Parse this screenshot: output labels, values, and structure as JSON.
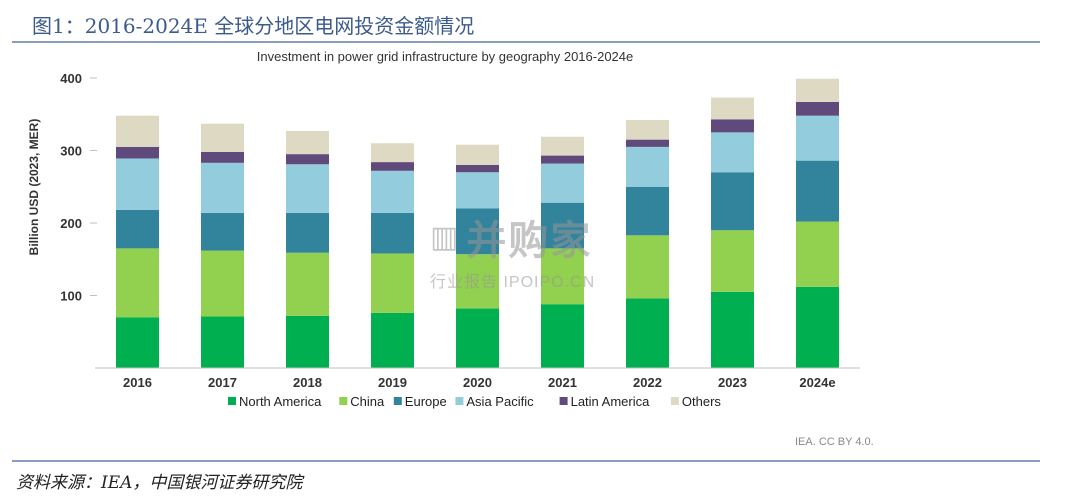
{
  "figure": {
    "caption": "图1：2016-2024E 全球分地区电网投资金额情况",
    "source": "资料来源：IEA，中国银河证券研究院",
    "license": "IEA. CC BY 4.0.",
    "watermark_main": "并购家",
    "watermark_icon": "▥",
    "watermark_sub": "行业报告 IPOIPO.CN"
  },
  "chart_data": {
    "type": "bar",
    "stacked": true,
    "title": "Investment in power grid infrastructure by geography 2016-2024e",
    "xlabel": "",
    "ylabel": "Billion USD (2023, MER)",
    "ylim": [
      0,
      400
    ],
    "yticks": [
      100,
      200,
      300,
      400
    ],
    "grid": false,
    "legend_position": "bottom",
    "categories": [
      "2016",
      "2017",
      "2018",
      "2019",
      "2020",
      "2021",
      "2022",
      "2023",
      "2024e"
    ],
    "series": [
      {
        "name": "North America",
        "color": "#00b050",
        "values": [
          70,
          71,
          72,
          76,
          82,
          88,
          96,
          105,
          112
        ]
      },
      {
        "name": "China",
        "color": "#92d050",
        "values": [
          95,
          91,
          87,
          82,
          75,
          77,
          87,
          85,
          90
        ]
      },
      {
        "name": "Europe",
        "color": "#31849b",
        "values": [
          53,
          52,
          55,
          56,
          63,
          63,
          67,
          80,
          84
        ]
      },
      {
        "name": "Asia Pacific",
        "color": "#93cddd",
        "values": [
          71,
          69,
          67,
          58,
          50,
          54,
          55,
          55,
          62
        ]
      },
      {
        "name": "Latin America",
        "color": "#604a7b",
        "values": [
          16,
          15,
          14,
          12,
          10,
          11,
          10,
          18,
          19
        ]
      },
      {
        "name": "Others",
        "color": "#ddd9c3",
        "values": [
          43,
          39,
          32,
          26,
          28,
          26,
          27,
          30,
          32
        ]
      }
    ]
  }
}
